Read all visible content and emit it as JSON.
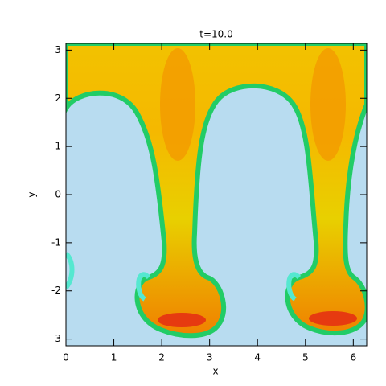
{
  "chart_data": {
    "type": "heatmap",
    "title": "t=10.0",
    "x_label": "x",
    "y_label": "y",
    "xlim": [
      0,
      6.28
    ],
    "ylim": [
      -3.14,
      3.14
    ],
    "xticks": [
      0,
      1,
      2,
      3,
      4,
      5,
      6
    ],
    "yticks": [
      -3,
      -2,
      -1,
      0,
      1,
      2,
      3
    ]
  }
}
